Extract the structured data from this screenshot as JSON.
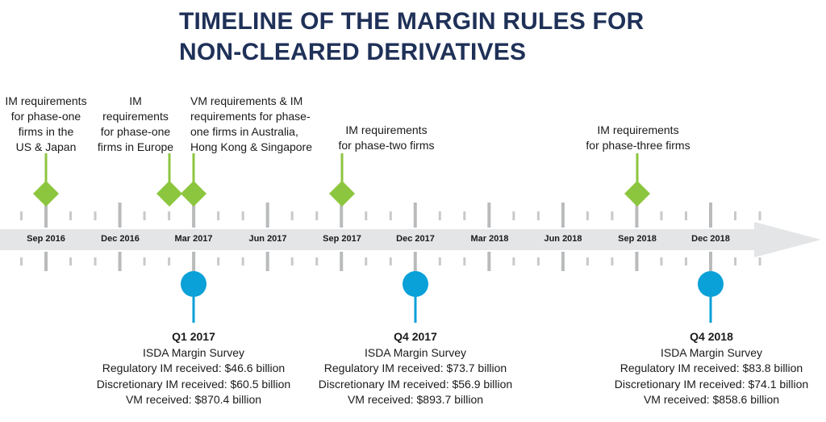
{
  "title": {
    "line1": "TIMELINE OF THE MARGIN RULES FOR",
    "line2": "NON-CLEARED DERIVATIVES"
  },
  "colors": {
    "title": "#1f3158",
    "green": "#8cc63f",
    "blue": "#0aa0d8",
    "arrow": "#e4e5e6",
    "tick": "#c8c9ca"
  },
  "months": [
    "Sep 2016",
    "Dec 2016",
    "Mar 2017",
    "Jun 2017",
    "Sep 2017",
    "Dec 2017",
    "Mar 2018",
    "Jun 2018",
    "Sep 2018",
    "Dec 2018"
  ],
  "events": [
    {
      "lines": [
        "IM requirements",
        "for phase-one",
        "firms in the",
        "US & Japan"
      ]
    },
    {
      "lines": [
        "IM",
        "requirements",
        "for phase-one",
        "firms in Europe"
      ]
    },
    {
      "lines": [
        "VM requirements & IM",
        "requirements for phase-",
        "one firms in Australia,",
        "Hong Kong & Singapore"
      ]
    },
    {
      "lines": [
        "IM requirements",
        "for phase-two firms"
      ]
    },
    {
      "lines": [
        "IM requirements",
        "for phase-three firms"
      ]
    }
  ],
  "surveys": [
    {
      "quarter": "Q1 2017",
      "name": "ISDA Margin Survey",
      "reg_im": "Regulatory IM received: $46.6 billion",
      "disc_im": "Discretionary IM received: $60.5 billion",
      "vm": "VM received: $870.4 billion"
    },
    {
      "quarter": "Q4 2017",
      "name": "ISDA Margin Survey",
      "reg_im": "Regulatory IM received: $73.7 billion",
      "disc_im": "Discretionary IM received: $56.9 billion",
      "vm": "VM received: $893.7 billion"
    },
    {
      "quarter": "Q4 2018",
      "name": "ISDA Margin Survey",
      "reg_im": "Regulatory IM received: $83.8 billion",
      "disc_im": "Discretionary IM received: $74.1 billion",
      "vm": "VM received: $858.6 billion"
    }
  ]
}
